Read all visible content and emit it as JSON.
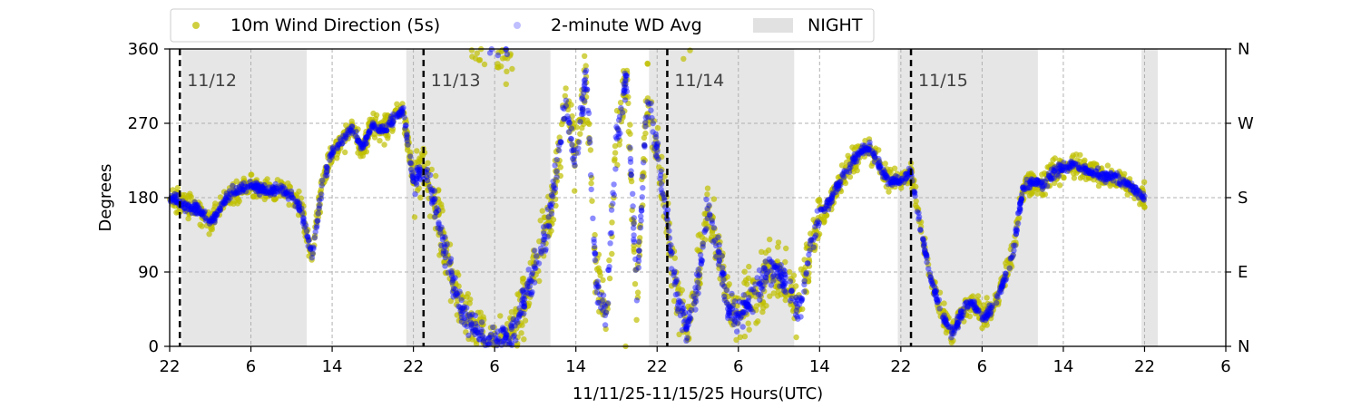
{
  "chart_data": {
    "type": "scatter",
    "xlabel": "11/11/25-11/15/25  Hours(UTC)",
    "ylabel": "Degrees",
    "x_range_hours": [
      0,
      104
    ],
    "x_ticks": [
      {
        "hour": 0,
        "label": "22"
      },
      {
        "hour": 8,
        "label": "6"
      },
      {
        "hour": 16,
        "label": "14"
      },
      {
        "hour": 24,
        "label": "22"
      },
      {
        "hour": 32,
        "label": "6"
      },
      {
        "hour": 40,
        "label": "14"
      },
      {
        "hour": 48,
        "label": "22"
      },
      {
        "hour": 56,
        "label": "6"
      },
      {
        "hour": 64,
        "label": "14"
      },
      {
        "hour": 72,
        "label": "22"
      },
      {
        "hour": 80,
        "label": "6"
      },
      {
        "hour": 88,
        "label": "14"
      },
      {
        "hour": 96,
        "label": "22"
      },
      {
        "hour": 104,
        "label": "6"
      }
    ],
    "ylim": [
      0,
      360
    ],
    "y_ticks": [
      0,
      90,
      180,
      270,
      360
    ],
    "y_ticks_right": [
      {
        "value": 0,
        "label": "N"
      },
      {
        "value": 90,
        "label": "E"
      },
      {
        "value": 180,
        "label": "S"
      },
      {
        "value": 270,
        "label": "W"
      },
      {
        "value": 360,
        "label": "N"
      }
    ],
    "grid": true,
    "legend_position": "top-left, outside plot",
    "night_periods_hours": [
      [
        1.2,
        13.5
      ],
      [
        23.3,
        37.5
      ],
      [
        47.2,
        61.5
      ],
      [
        71.7,
        85.5
      ],
      [
        95.7,
        97.3
      ]
    ],
    "day_markers": [
      {
        "hour": 1.0,
        "label": "11/12"
      },
      {
        "hour": 25.0,
        "label": "11/13"
      },
      {
        "hour": 49.0,
        "label": "11/14"
      },
      {
        "hour": 73.0,
        "label": "11/15"
      }
    ],
    "series": [
      {
        "name": "10m Wind Direction (5s)",
        "color": "#bfbf00",
        "style": "scatter",
        "trend_hours": [
          0,
          1,
          2,
          3,
          4,
          5,
          6,
          7,
          8,
          9,
          10,
          11,
          12,
          13,
          14,
          15,
          16,
          17,
          18,
          19,
          20,
          21,
          22,
          23,
          24,
          25,
          26,
          27,
          28,
          29,
          30,
          31,
          32,
          33,
          34,
          35,
          36,
          37,
          38,
          39,
          40,
          41,
          42,
          43,
          44,
          45,
          46,
          47,
          48,
          49,
          50,
          51,
          52,
          53,
          54,
          55,
          56,
          57,
          58,
          59,
          60,
          61,
          62,
          63,
          64,
          65,
          66,
          67,
          68,
          69,
          70,
          71,
          72,
          73,
          74,
          75,
          76,
          77,
          78,
          79,
          80,
          81,
          82,
          83,
          84,
          85,
          86,
          87,
          88,
          89,
          90,
          91,
          92,
          93,
          94,
          95,
          96
        ],
        "trend_degrees": [
          180,
          175,
          168,
          165,
          148,
          170,
          185,
          190,
          195,
          190,
          188,
          190,
          182,
          165,
          105,
          195,
          235,
          250,
          265,
          240,
          270,
          260,
          275,
          285,
          200,
          215,
          180,
          120,
          70,
          40,
          20,
          10,
          8,
          5,
          20,
          60,
          100,
          130,
          200,
          300,
          220,
          330,
          80,
          40,
          250,
          330,
          60,
          300,
          240,
          150,
          60,
          20,
          80,
          170,
          120,
          50,
          30,
          55,
          70,
          90,
          90,
          75,
          40,
          110,
          160,
          175,
          200,
          220,
          235,
          240,
          215,
          200,
          200,
          210,
          140,
          80,
          40,
          15,
          40,
          55,
          35,
          45,
          75,
          110,
          190,
          200,
          195,
          210,
          215,
          220,
          215,
          210,
          205,
          205,
          200,
          190,
          180
        ]
      },
      {
        "name": "2-minute WD Avg",
        "color": "#0000ff",
        "style": "scatter",
        "trend_hours": [
          0,
          1,
          2,
          3,
          4,
          5,
          6,
          7,
          8,
          9,
          10,
          11,
          12,
          13,
          14,
          15,
          16,
          17,
          18,
          19,
          20,
          21,
          22,
          23,
          24,
          25,
          26,
          27,
          28,
          29,
          30,
          31,
          32,
          33,
          34,
          35,
          36,
          37,
          38,
          39,
          40,
          41,
          42,
          43,
          44,
          45,
          46,
          47,
          48,
          49,
          50,
          51,
          52,
          53,
          54,
          55,
          56,
          57,
          58,
          59,
          60,
          61,
          62,
          63,
          64,
          65,
          66,
          67,
          68,
          69,
          70,
          71,
          72,
          73,
          74,
          75,
          76,
          77,
          78,
          79,
          80,
          81,
          82,
          83,
          84,
          85,
          86,
          87,
          88,
          89,
          90,
          91,
          92,
          93,
          94,
          95,
          96
        ],
        "trend_degrees": [
          180,
          175,
          168,
          165,
          148,
          170,
          185,
          190,
          195,
          190,
          188,
          190,
          182,
          165,
          105,
          195,
          235,
          250,
          265,
          240,
          270,
          260,
          275,
          285,
          200,
          215,
          180,
          120,
          70,
          40,
          20,
          10,
          8,
          5,
          20,
          60,
          100,
          130,
          200,
          300,
          220,
          330,
          80,
          40,
          250,
          330,
          60,
          300,
          240,
          150,
          60,
          20,
          80,
          170,
          120,
          50,
          30,
          55,
          70,
          90,
          90,
          75,
          40,
          110,
          160,
          175,
          200,
          220,
          235,
          240,
          215,
          200,
          200,
          210,
          140,
          80,
          40,
          15,
          40,
          55,
          35,
          45,
          75,
          110,
          190,
          200,
          195,
          210,
          215,
          220,
          215,
          210,
          205,
          205,
          200,
          190,
          180
        ]
      }
    ],
    "night_legend_label": "NIGHT",
    "night_color": "#d9d9d9"
  }
}
